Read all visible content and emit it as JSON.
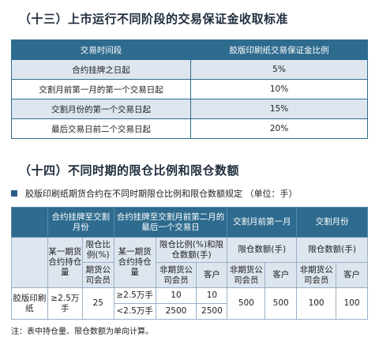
{
  "section1": {
    "title": "（十三）上市运行不同阶段的交易保证金收取标准",
    "table": {
      "headers": [
        "交易时间段",
        "胶版印刷纸交易保证金比例"
      ],
      "rows": [
        [
          "合约挂牌之日起",
          "5%"
        ],
        [
          "交割月前第一月的第一个交易日起",
          "10%"
        ],
        [
          "交割月份的第一个交易日起",
          "15%"
        ],
        [
          "最后交易日前二个交易日起",
          "20%"
        ]
      ]
    }
  },
  "section2": {
    "title": "（十四）不同时期的限仓比例和限仓数额",
    "subtitle": "胶版印刷纸期货合约在不同时期限仓比例和限仓数额规定 （单位：手）",
    "table": {
      "group_headers": {
        "g1": "合约挂牌至交割月份",
        "g2": "合约挂牌至交割月前第二月的最后一个交易日",
        "g3": "交割月前第一月",
        "g4": "交割月份"
      },
      "sub_headers": {
        "g1_a": "某一期货合约持仓量",
        "g1_b": "限仓比例(%)",
        "g1_b2": "期货公司会员",
        "g2_a": "某一期货合约持仓量",
        "g2_b": "限仓比例(%)和限仓数额(手)",
        "g3": "限仓数额(手)",
        "g4": "限仓数额(手)"
      },
      "role_headers": {
        "futures_member": "非期货公司会员",
        "client": "客户"
      },
      "product": "胶版印刷纸",
      "g1_threshold": "≥2.5万手",
      "g1_ratio": "25",
      "g2_rows": [
        {
          "threshold": "≥2.5万手",
          "member": "10",
          "client": "10"
        },
        {
          "threshold": "<2.5万手",
          "member": "2500",
          "client": "2500"
        }
      ],
      "g3_member": "500",
      "g3_client": "500",
      "g4_member": "100",
      "g4_client": "100"
    },
    "note": "注：表中持仓量、限仓数额为单向计算。"
  }
}
